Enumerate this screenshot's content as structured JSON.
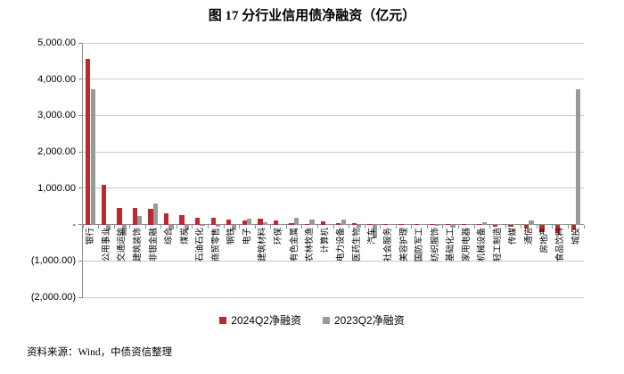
{
  "title": "图 17 分行业信用债净融资（亿元）",
  "source_note": "资料来源：Wind，中债资信整理",
  "colors": {
    "series_red": "#c0282d",
    "series_gray": "#999999",
    "gridline": "#c9c9c9",
    "axis": "#8c8c8c",
    "text": "#000000"
  },
  "chart_data": {
    "type": "bar",
    "title": "图 17 分行业信用债净融资（亿元）",
    "unit": "亿元",
    "categories": [
      "银行",
      "公用事业",
      "交通运输",
      "建筑装饰",
      "非银金融",
      "综合",
      "煤炭",
      "石油石化",
      "商贸零售",
      "钢铁",
      "电子",
      "建筑材料",
      "环保",
      "有色金属",
      "农林牧渔",
      "计算机",
      "电力设备",
      "医药生物",
      "汽车",
      "社会服务",
      "美容护理",
      "国防军工",
      "纺织服饰",
      "基础化工",
      "家用电器",
      "机械设备",
      "轻工制造",
      "传媒",
      "通信",
      "房地产",
      "食品饮料",
      "城投"
    ],
    "series": [
      {
        "name": "2024Q2净融资",
        "color": "#c0282d",
        "values": [
          4550,
          1100,
          460,
          450,
          430,
          310,
          250,
          190,
          190,
          140,
          110,
          170,
          110,
          30,
          15,
          85,
          50,
          35,
          15,
          25,
          5,
          20,
          10,
          15,
          20,
          10,
          -60,
          -70,
          -110,
          -215,
          -235,
          -140
        ]
      },
      {
        "name": "2023Q2净融资",
        "color": "#999999",
        "values": [
          3730,
          -170,
          -310,
          225,
          590,
          -130,
          -170,
          -40,
          -60,
          -170,
          170,
          60,
          20,
          195,
          130,
          20,
          145,
          -90,
          -370,
          15,
          5,
          10,
          -15,
          -80,
          15,
          70,
          10,
          15,
          110,
          20,
          25,
          3730
        ]
      }
    ],
    "ylim": [
      -2000,
      5000
    ],
    "y_tick_step": 1000,
    "y_tick_labels": [
      "5,000.00",
      "4,000.00",
      "3,000.00",
      "2,000.00",
      "1,000.00",
      "-",
      "(1,000.00)",
      "(2,000.00)"
    ],
    "grid": true,
    "legend_position": "bottom",
    "xlabel": "",
    "ylabel": ""
  }
}
